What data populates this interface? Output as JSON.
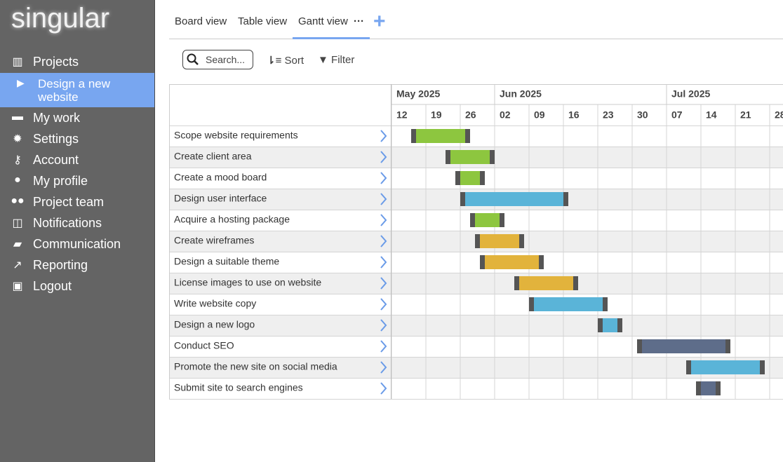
{
  "logo": "singular",
  "nav": {
    "items": [
      "Projects",
      "My work",
      "Settings",
      "Account",
      "My profile",
      "Project team",
      "Notifications",
      "Communication",
      "Reporting",
      "Logout"
    ],
    "active_project": "Design a new website"
  },
  "tabs": [
    "Board view",
    "Table view",
    "Gantt view"
  ],
  "toolbar": {
    "search": "Search...",
    "sort": "Sort",
    "filter": "Filter"
  },
  "gantt": {
    "months": [
      {
        "label": "May 2025",
        "weeks": [
          "12",
          "19",
          "26"
        ]
      },
      {
        "label": "Jun 2025",
        "weeks": [
          "02",
          "09",
          "16",
          "23",
          "30"
        ]
      },
      {
        "label": "Jul 2025",
        "weeks": [
          "07",
          "14",
          "21",
          "28"
        ]
      }
    ],
    "tasks": [
      {
        "name": "Scope website requirements",
        "start": "2025-05-16",
        "end": "2025-05-28",
        "color": "#8dc63f"
      },
      {
        "name": "Create client area",
        "start": "2025-05-23",
        "end": "2025-06-02",
        "color": "#8dc63f"
      },
      {
        "name": "Create a mood board",
        "start": "2025-05-25",
        "end": "2025-05-31",
        "color": "#8dc63f"
      },
      {
        "name": "Design user interface",
        "start": "2025-05-26",
        "end": "2025-06-17",
        "color": "#5ab4d8"
      },
      {
        "name": "Acquire a hosting package",
        "start": "2025-05-28",
        "end": "2025-06-04",
        "color": "#8dc63f"
      },
      {
        "name": "Create wireframes",
        "start": "2025-05-29",
        "end": "2025-06-08",
        "color": "#e2b33c"
      },
      {
        "name": "Design a suitable theme",
        "start": "2025-05-30",
        "end": "2025-06-12",
        "color": "#e2b33c"
      },
      {
        "name": "License images to use on website",
        "start": "2025-06-06",
        "end": "2025-06-19",
        "color": "#e2b33c"
      },
      {
        "name": "Write website copy",
        "start": "2025-06-09",
        "end": "2025-06-25",
        "color": "#5ab4d8"
      },
      {
        "name": "Design a new logo",
        "start": "2025-06-23",
        "end": "2025-06-28",
        "color": "#5ab4d8"
      },
      {
        "name": "Conduct SEO",
        "start": "2025-07-01",
        "end": "2025-07-20",
        "color": "#5e6d8a"
      },
      {
        "name": "Promote the new site on social media",
        "start": "2025-07-11",
        "end": "2025-07-27",
        "color": "#5ab4d8"
      },
      {
        "name": "Submit site to search engines",
        "start": "2025-07-13",
        "end": "2025-07-18",
        "color": "#5e6d8a"
      }
    ]
  }
}
